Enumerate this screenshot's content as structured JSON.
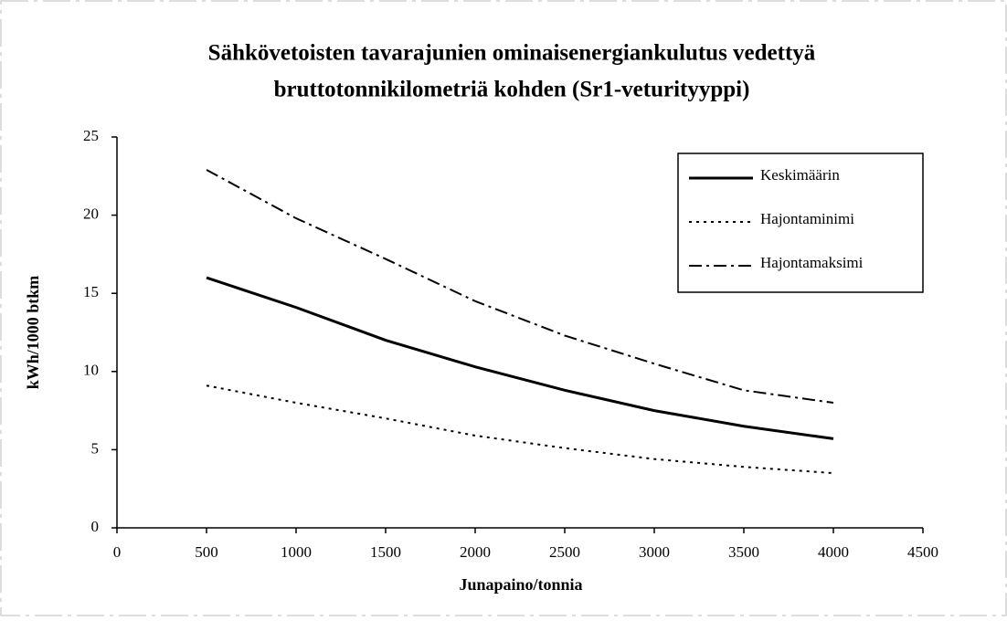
{
  "chart_data": {
    "type": "line",
    "title": [
      "Sähkövetoisten tavarajunien ominaisenergiankulutus vedettyä",
      "bruttotonnikilometriä kohden (Sr1-veturityyppi)"
    ],
    "x_label": "Junapaino/tonnia",
    "y_label": "kWh/1000 btkm",
    "x": [
      500,
      1000,
      1500,
      2000,
      2500,
      3000,
      3500,
      4000
    ],
    "series": [
      {
        "name": "Keskimäärin",
        "color": "#000000",
        "style": "solid",
        "values": [
          16,
          14.1,
          12,
          10.3,
          8.8,
          7.5,
          6.5,
          5.7
        ]
      },
      {
        "name": "Hajontaminimi",
        "color": "#000000",
        "style": "dotted",
        "values": [
          9.1,
          8,
          7,
          5.9,
          5.1,
          4.4,
          3.9,
          3.5
        ]
      },
      {
        "name": "Hajontamaksimi",
        "color": "#000000",
        "style": "dashdot",
        "values": [
          22.9,
          19.8,
          17.2,
          14.5,
          12.3,
          10.5,
          8.8,
          8.0
        ]
      }
    ],
    "xlim": [
      0,
      4500
    ],
    "xticks": [
      0,
      500,
      1000,
      1500,
      2000,
      2500,
      3000,
      3500,
      4000,
      4500
    ],
    "ylim": [
      0,
      25
    ],
    "yticks": [
      0,
      5,
      10,
      15,
      20,
      25
    ],
    "grid": false,
    "legend": "upper right"
  }
}
